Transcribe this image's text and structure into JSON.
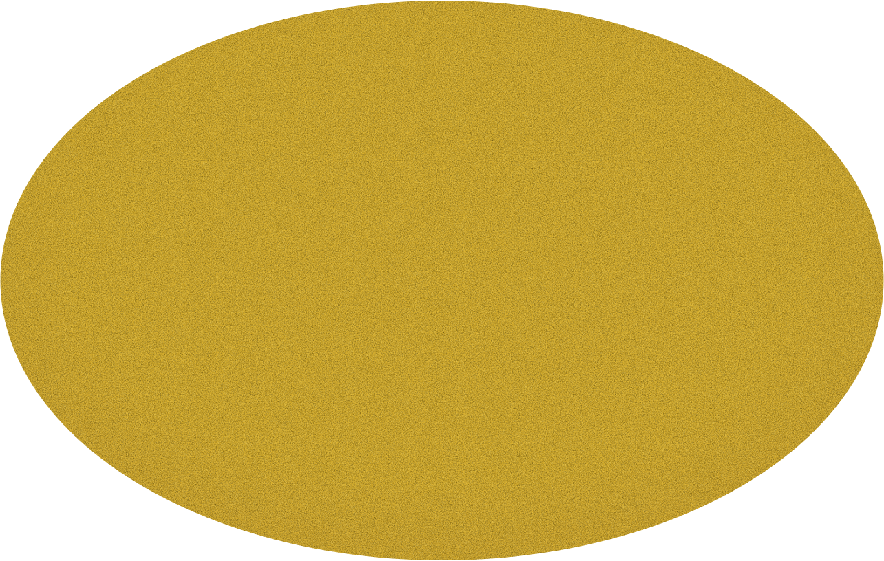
{
  "shape": {
    "name": "gold-glitter-oval",
    "base_color": "#d9b02e",
    "highlight_color": "#f2d23a",
    "shadow_color": "#a8882a",
    "background_color": "#ffffff"
  }
}
